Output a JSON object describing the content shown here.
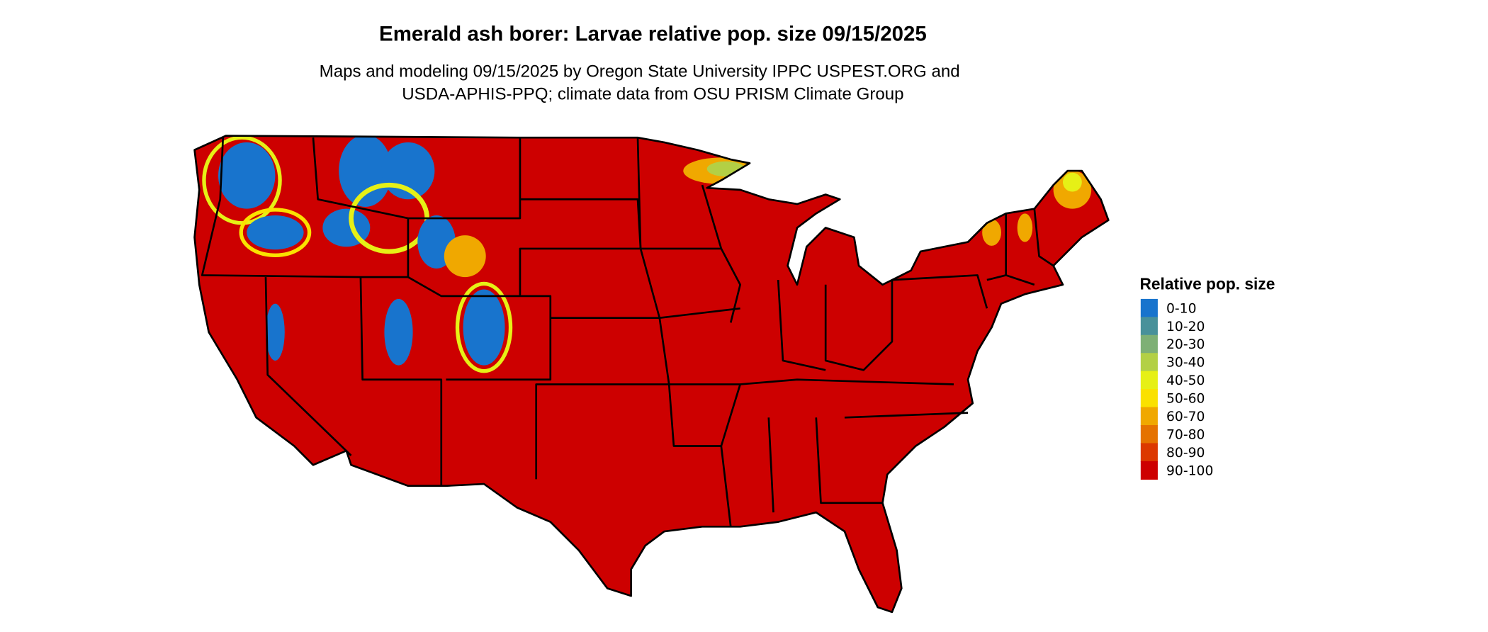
{
  "title": "Emerald ash borer: Larvae relative pop. size 09/15/2025",
  "subtitle_line1": "Maps and modeling 09/15/2025 by Oregon State University IPPC USPEST.ORG and",
  "subtitle_line2": "USDA-APHIS-PPQ; climate data from OSU PRISM Climate Group",
  "legend": {
    "title": "Relative pop. size",
    "items": [
      {
        "label": "0-10",
        "color": "#1874cd"
      },
      {
        "label": "10-20",
        "color": "#48919a"
      },
      {
        "label": "20-30",
        "color": "#7eb075"
      },
      {
        "label": "30-40",
        "color": "#b3d045"
      },
      {
        "label": "40-50",
        "color": "#e6f016"
      },
      {
        "label": "50-60",
        "color": "#fae100"
      },
      {
        "label": "60-70",
        "color": "#f0a800"
      },
      {
        "label": "70-80",
        "color": "#e57200"
      },
      {
        "label": "80-90",
        "color": "#dc3800"
      },
      {
        "label": "90-100",
        "color": "#cd0000"
      }
    ]
  },
  "map": {
    "region": "Contiguous United States",
    "dominant_class": "90-100"
  }
}
